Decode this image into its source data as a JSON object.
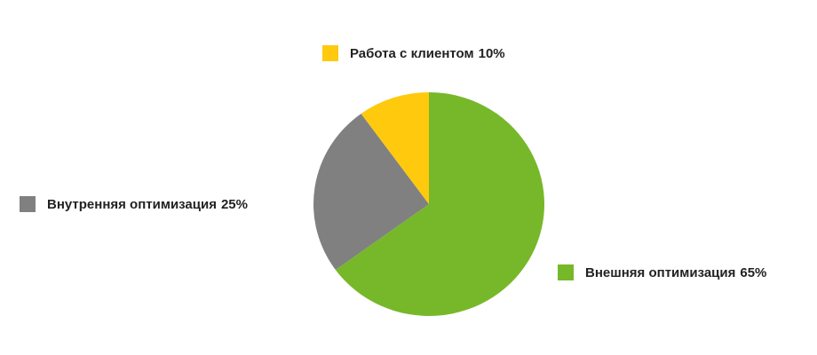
{
  "chart_data": {
    "type": "pie",
    "categories": [
      "Внешняя оптимизация",
      "Внутренняя оптимизация",
      "Работа с клиентом"
    ],
    "values": [
      65,
      25,
      10
    ],
    "value_labels": [
      "65%",
      "25%",
      "10%"
    ],
    "colors": [
      "#76b82a",
      "#808080",
      "#ffc90e"
    ]
  }
}
